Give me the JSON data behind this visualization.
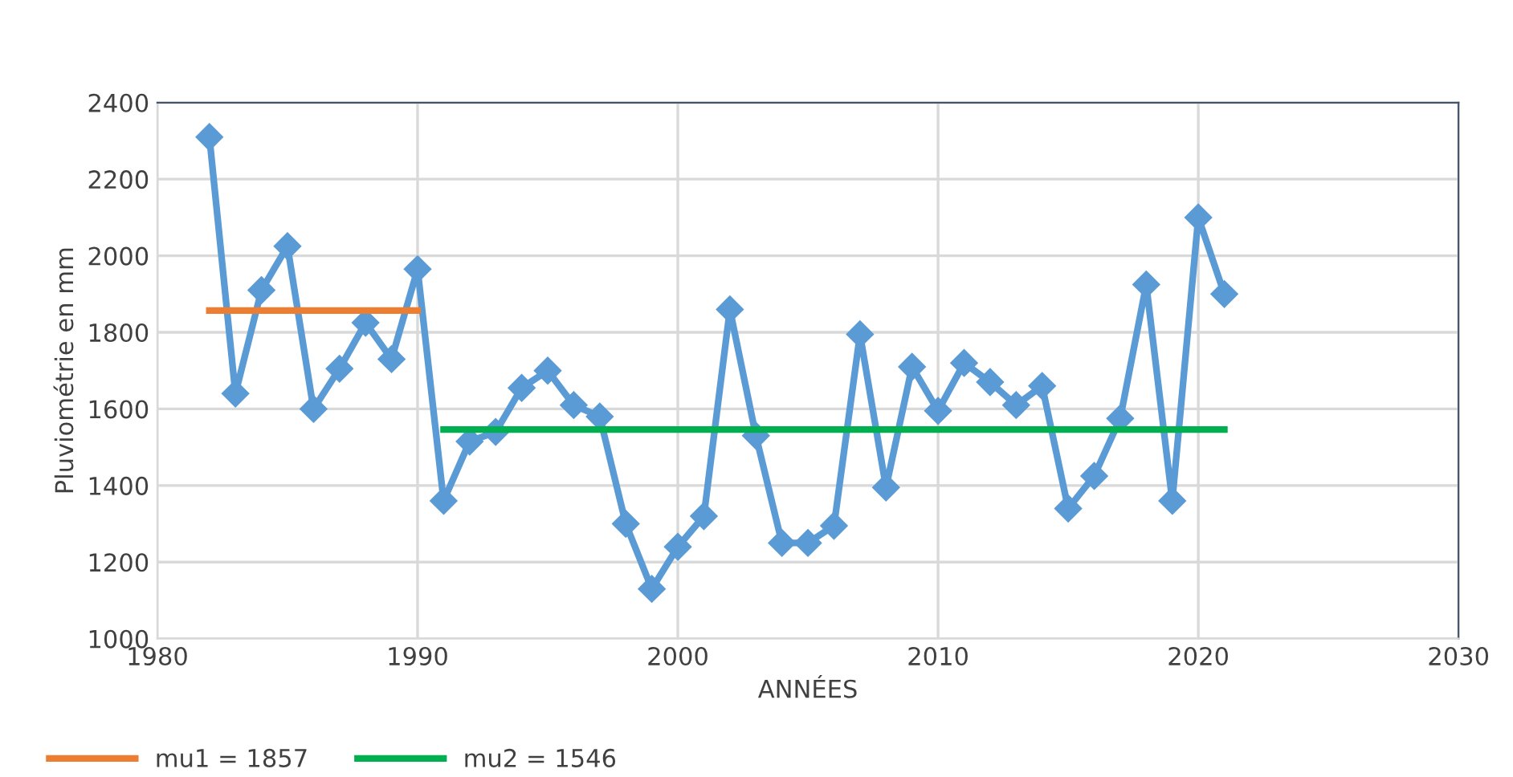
{
  "chart_data": {
    "type": "line",
    "xlabel": "ANNÉES",
    "ylabel": "Pluviométrie en mm",
    "xlim": [
      1980,
      2030
    ],
    "xticks": [
      1980,
      1990,
      2000,
      2010,
      2020,
      2030
    ],
    "ylim": [
      1000,
      2400
    ],
    "yticks": [
      1000,
      1200,
      1400,
      1600,
      1800,
      2000,
      2200,
      2400
    ],
    "grid": true,
    "legend": "bottom left",
    "marker": "diamond",
    "line_style": "solid",
    "series": [
      {
        "color": "#5b9bd5",
        "x": [
          1982,
          1983,
          1984,
          1985,
          1986,
          1987,
          1988,
          1989,
          1990,
          1991,
          1992,
          1993,
          1994,
          1995,
          1996,
          1997,
          1998,
          1999,
          2000,
          2001,
          2002,
          2003,
          2004,
          2005,
          2006,
          2007,
          2008,
          2009,
          2010,
          2011,
          2012,
          2013,
          2014,
          2015,
          2016,
          2017,
          2018,
          2019,
          2020,
          2021
        ],
        "values": [
          2310,
          1640,
          1910,
          2025,
          1600,
          1705,
          1825,
          1730,
          1965,
          1360,
          1515,
          1540,
          1655,
          1700,
          1610,
          1580,
          1300,
          1130,
          1240,
          1320,
          1860,
          1530,
          1250,
          1250,
          1295,
          1795,
          1395,
          1710,
          1595,
          1720,
          1670,
          1610,
          1660,
          1340,
          1425,
          1575,
          1925,
          1360,
          2100,
          1900
        ]
      },
      {
        "name": "mu1 = 1857",
        "color": "#ed7d31",
        "marker": "none",
        "x": [
          1982,
          1990
        ],
        "values": [
          1857,
          1857
        ]
      },
      {
        "name": "mu2 = 1546",
        "color": "#00b050",
        "marker": "none",
        "x": [
          1991,
          2021
        ],
        "values": [
          1546,
          1546
        ]
      }
    ]
  }
}
